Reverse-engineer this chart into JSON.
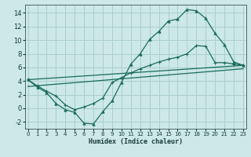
{
  "background_color": "#cce8e8",
  "grid_color": "#aacece",
  "line_color": "#1a6b5a",
  "xlabel": "Humidex (Indice chaleur)",
  "xlim": [
    -0.3,
    23.3
  ],
  "ylim": [
    -3.0,
    15.2
  ],
  "xticks": [
    0,
    1,
    2,
    3,
    4,
    5,
    6,
    7,
    8,
    9,
    10,
    11,
    12,
    13,
    14,
    15,
    16,
    17,
    18,
    19,
    20,
    21,
    22,
    23
  ],
  "yticks": [
    -2,
    0,
    2,
    4,
    6,
    8,
    10,
    12,
    14
  ],
  "line1_x": [
    0,
    1,
    2,
    3,
    4,
    5,
    6,
    7,
    8,
    9,
    10,
    11,
    12,
    13,
    14,
    15,
    16,
    17,
    18,
    19,
    20,
    21,
    22,
    23
  ],
  "line1_y": [
    4.2,
    3.1,
    2.3,
    0.7,
    -0.2,
    -0.6,
    -2.2,
    -2.3,
    -0.5,
    1.1,
    3.8,
    6.5,
    8.0,
    10.1,
    11.3,
    12.8,
    13.1,
    14.5,
    14.3,
    13.2,
    11.0,
    9.3,
    6.8,
    6.3
  ],
  "line2_x": [
    0,
    23
  ],
  "line2_y": [
    4.2,
    6.3
  ],
  "line3_x": [
    0,
    23
  ],
  "line3_y": [
    3.2,
    5.8
  ],
  "line4_x": [
    0,
    1,
    2,
    3,
    4,
    5,
    6,
    7,
    8,
    9,
    10,
    11,
    12,
    13,
    14,
    15,
    16,
    17,
    18,
    19,
    20,
    21,
    22,
    23
  ],
  "line4_y": [
    4.2,
    3.3,
    2.5,
    1.8,
    0.5,
    -0.2,
    0.2,
    0.7,
    1.5,
    3.8,
    4.5,
    5.2,
    5.8,
    6.3,
    6.8,
    7.2,
    7.5,
    8.0,
    9.2,
    9.1,
    6.7,
    6.7,
    6.5,
    6.3
  ]
}
